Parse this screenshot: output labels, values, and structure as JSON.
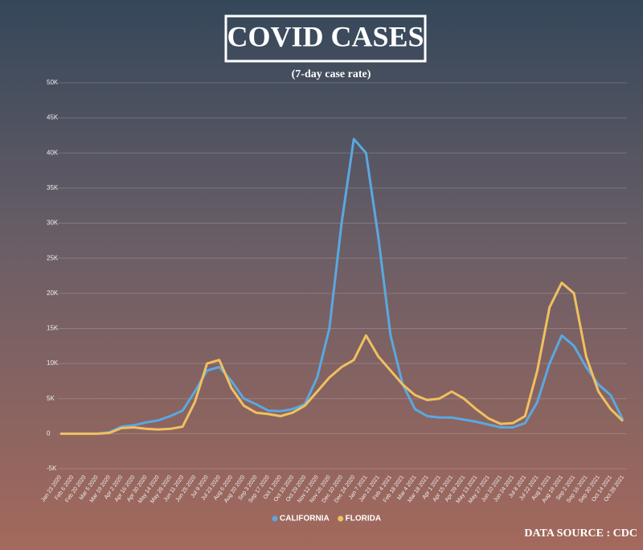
{
  "chart_data": {
    "type": "line",
    "title": "COVID CASES",
    "subtitle": "(7-day case rate)",
    "source": "DATA SOURCE : CDC",
    "categories": [
      "Jan 23 2020",
      "Feb 6 2020",
      "Feb 20 2020",
      "Mar 5 2020",
      "Mar 19 2020",
      "Apr 2 2020",
      "Apr 16 2020",
      "Apr 30 2020",
      "May 14 2020",
      "May 28 2020",
      "Jun 11 2020",
      "Jun 25 2020",
      "Jul 9 2020",
      "Jul 23 2020",
      "Aug 6 2020",
      "Aug 20 2020",
      "Sep 3 2020",
      "Sep 17 2020",
      "Oct 1 2020",
      "Oct 15 2020",
      "Oct 29 2020",
      "Nov 12 2020",
      "Nov 26 2020",
      "Dec 10 2020",
      "Dec 24 2020",
      "Jan 7 2021",
      "Jan 21 2021",
      "Feb 4 2021",
      "Feb 18 2021",
      "Mar 4 2021",
      "Mar 18 2021",
      "Apr 1 2021",
      "Apr 15 2021",
      "Apr 29 2021",
      "May 13 2021",
      "May 27 2021",
      "Jun 10 2021",
      "Jun 24 2021",
      "Jul 8 2021",
      "Jul 22 2021",
      "Aug 5 2021",
      "Aug 19 2021",
      "Sep 2 2021",
      "Sep 16 2021",
      "Sep 30 2021",
      "Oct 14 2021",
      "Oct 28 2021"
    ],
    "series": [
      {
        "name": "CALIFORNIA",
        "color": "#5aa8e0",
        "values": [
          0,
          0,
          0,
          0,
          200,
          1000,
          1200,
          1600,
          1900,
          2500,
          3300,
          6000,
          9000,
          9500,
          7500,
          5000,
          4200,
          3300,
          3200,
          3500,
          4200,
          8000,
          15000,
          30000,
          42000,
          40000,
          28000,
          14000,
          7000,
          3500,
          2500,
          2300,
          2300,
          2000,
          1700,
          1300,
          900,
          900,
          1500,
          4500,
          10000,
          14000,
          12500,
          9500,
          7000,
          5500,
          2000
        ]
      },
      {
        "name": "FLORIDA",
        "color": "#f0c060",
        "values": [
          0,
          0,
          0,
          0,
          100,
          800,
          900,
          700,
          600,
          700,
          1000,
          4500,
          10000,
          10500,
          6500,
          4000,
          3000,
          2800,
          2500,
          3000,
          4000,
          6000,
          8000,
          9500,
          10500,
          14000,
          11000,
          9000,
          7000,
          5500,
          4800,
          5000,
          6000,
          5000,
          3500,
          2200,
          1400,
          1500,
          2500,
          9000,
          18000,
          21500,
          20000,
          11000,
          6000,
          3500,
          1800
        ]
      }
    ],
    "ylim": [
      -5000,
      50000
    ],
    "yticks": [
      {
        "value": -5000,
        "label": "-5K"
      },
      0,
      {
        "value": 5000,
        "label": "5K"
      },
      {
        "value": 10000,
        "label": "10K"
      },
      {
        "value": 15000,
        "label": "15K"
      },
      {
        "value": 20000,
        "label": "20K"
      },
      {
        "value": 25000,
        "label": "25K"
      },
      {
        "value": 30000,
        "label": "30K"
      },
      {
        "value": 35000,
        "label": "35K"
      },
      {
        "value": 40000,
        "label": "40K"
      },
      {
        "value": 45000,
        "label": "45K"
      },
      {
        "value": 50000,
        "label": "50K"
      }
    ],
    "grid": true
  }
}
